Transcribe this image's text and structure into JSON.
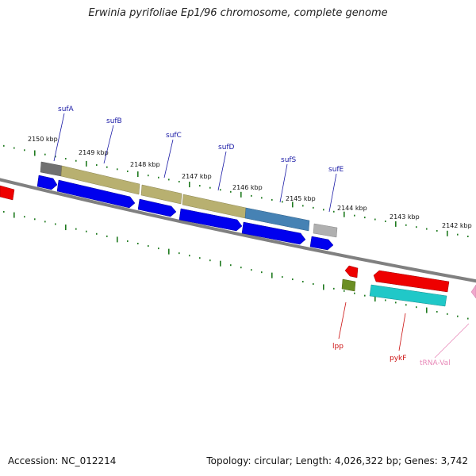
{
  "title": "Erwinia pyrifoliae Ep1/96 chromosome, complete genome",
  "footer": {
    "accession": "Accession: NC_012214",
    "stats": "Topology: circular; Length: 4,026,322 bp; Genes: 3,742"
  },
  "colors": {
    "forward_label": "#1a1aa6",
    "reverse_label": "#cc1111",
    "rna_label": "#e888b8",
    "axis": "#808080",
    "tick": "#1f7a1f"
  },
  "kbp_labels": [
    "2150 kbp",
    "2149 kbp",
    "2148 kbp",
    "2147 kbp",
    "2146 kbp",
    "2145 kbp",
    "2144 kbp",
    "2143 kbp",
    "2142 kbp"
  ],
  "genes": [
    {
      "name": "sufA",
      "strand": "forward"
    },
    {
      "name": "sufB",
      "strand": "forward"
    },
    {
      "name": "sufC",
      "strand": "forward"
    },
    {
      "name": "sufD",
      "strand": "forward"
    },
    {
      "name": "sufS",
      "strand": "forward"
    },
    {
      "name": "sufE",
      "strand": "forward"
    },
    {
      "name": "lpp",
      "strand": "reverse"
    },
    {
      "name": "pykF",
      "strand": "reverse"
    },
    {
      "name": "tRNA-Val",
      "strand": "reverse",
      "type": "rna"
    }
  ]
}
